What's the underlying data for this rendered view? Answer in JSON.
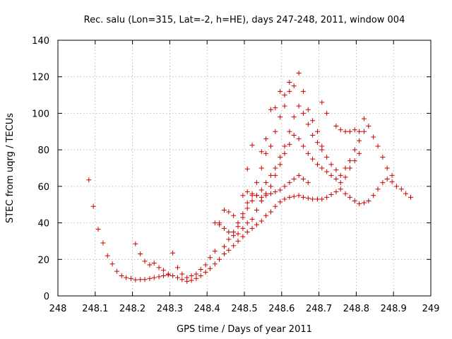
{
  "chart_data": {
    "type": "scatter",
    "title": "Rec. salu (Lon=315, Lat=-2, h=HE), days 247-248, 2011, window 004",
    "xlabel": "GPS time / Days of year 2011",
    "ylabel": "STEC from uqrg / TECUs",
    "xlim": [
      248,
      249
    ],
    "ylim": [
      0,
      140
    ],
    "x_ticks": [
      248,
      248.1,
      248.2,
      248.3,
      248.4,
      248.5,
      248.6,
      248.7,
      248.8,
      248.9,
      249
    ],
    "x_tick_labels": [
      "248",
      "248.1",
      "248.2",
      "248.3",
      "248.4",
      "248.5",
      "248.6",
      "248.7",
      "248.8",
      "248.9",
      "249"
    ],
    "y_ticks": [
      0,
      20,
      40,
      60,
      80,
      100,
      120,
      140
    ],
    "y_tick_labels": [
      "0",
      "20",
      "40",
      "60",
      "80",
      "100",
      "120",
      "140"
    ],
    "grid": true,
    "marker": "+",
    "marker_color": "#cc0000",
    "points": [
      [
        248.083,
        63.5
      ],
      [
        248.095,
        49
      ],
      [
        248.108,
        36.5
      ],
      [
        248.121,
        29
      ],
      [
        248.133,
        22
      ],
      [
        248.146,
        17.5
      ],
      [
        248.158,
        13.5
      ],
      [
        248.171,
        11
      ],
      [
        248.183,
        10
      ],
      [
        248.196,
        9.5
      ],
      [
        248.208,
        8.8
      ],
      [
        248.221,
        9
      ],
      [
        248.233,
        9
      ],
      [
        248.246,
        9.5
      ],
      [
        248.258,
        10
      ],
      [
        248.271,
        10.5
      ],
      [
        248.283,
        11
      ],
      [
        248.296,
        11.5
      ],
      [
        248.308,
        11
      ],
      [
        248.321,
        10
      ],
      [
        248.333,
        9
      ],
      [
        248.346,
        8
      ],
      [
        248.358,
        8.5
      ],
      [
        248.371,
        9.5
      ],
      [
        248.383,
        11
      ],
      [
        248.396,
        13
      ],
      [
        248.408,
        15
      ],
      [
        248.421,
        17.5
      ],
      [
        248.433,
        20
      ],
      [
        248.446,
        23
      ],
      [
        248.458,
        25
      ],
      [
        248.471,
        27.5
      ],
      [
        248.483,
        30
      ],
      [
        248.496,
        32.5
      ],
      [
        248.508,
        35
      ],
      [
        248.521,
        37
      ],
      [
        248.533,
        39
      ],
      [
        248.546,
        41
      ],
      [
        248.558,
        44
      ],
      [
        248.571,
        46
      ],
      [
        248.583,
        49
      ],
      [
        248.596,
        51.5
      ],
      [
        248.608,
        53
      ],
      [
        248.621,
        54
      ],
      [
        248.633,
        54.5
      ],
      [
        248.646,
        55
      ],
      [
        248.658,
        54
      ],
      [
        248.671,
        53.5
      ],
      [
        248.683,
        53
      ],
      [
        248.696,
        53
      ],
      [
        248.708,
        53
      ],
      [
        248.721,
        54
      ],
      [
        248.733,
        55.5
      ],
      [
        248.746,
        57
      ],
      [
        248.758,
        58.5
      ],
      [
        248.771,
        56
      ],
      [
        248.783,
        54
      ],
      [
        248.796,
        52
      ],
      [
        248.808,
        50.5
      ],
      [
        248.821,
        51
      ],
      [
        248.833,
        52
      ],
      [
        248.846,
        55
      ],
      [
        248.858,
        58.5
      ],
      [
        248.871,
        62
      ],
      [
        248.883,
        64
      ],
      [
        248.896,
        62.5
      ],
      [
        248.908,
        60
      ],
      [
        248.921,
        58.5
      ],
      [
        248.933,
        56
      ],
      [
        248.946,
        54
      ],
      [
        248.208,
        28.5
      ],
      [
        248.221,
        23
      ],
      [
        248.233,
        19
      ],
      [
        248.246,
        17
      ],
      [
        248.258,
        18
      ],
      [
        248.271,
        15.5
      ],
      [
        248.283,
        14
      ],
      [
        248.296,
        12
      ],
      [
        248.308,
        23.5
      ],
      [
        248.321,
        15.5
      ],
      [
        248.333,
        12
      ],
      [
        248.346,
        10
      ],
      [
        248.358,
        11
      ],
      [
        248.371,
        12
      ],
      [
        248.383,
        14.5
      ],
      [
        248.396,
        17
      ],
      [
        248.408,
        21
      ],
      [
        248.421,
        24.5
      ],
      [
        248.433,
        40
      ],
      [
        248.446,
        47
      ],
      [
        248.458,
        46
      ],
      [
        248.471,
        44
      ],
      [
        248.483,
        40
      ],
      [
        248.496,
        45
      ],
      [
        248.508,
        51
      ],
      [
        248.521,
        55
      ],
      [
        248.533,
        62
      ],
      [
        248.546,
        70
      ],
      [
        248.558,
        78
      ],
      [
        248.571,
        82
      ],
      [
        248.583,
        90
      ],
      [
        248.596,
        98
      ],
      [
        248.608,
        104
      ],
      [
        248.621,
        112
      ],
      [
        248.633,
        115
      ],
      [
        248.646,
        122
      ],
      [
        248.658,
        112
      ],
      [
        248.671,
        102
      ],
      [
        248.683,
        96
      ],
      [
        248.696,
        90
      ],
      [
        248.708,
        82
      ],
      [
        248.721,
        76
      ],
      [
        248.733,
        72
      ],
      [
        248.746,
        69
      ],
      [
        248.758,
        66
      ],
      [
        248.771,
        70
      ],
      [
        248.783,
        74
      ],
      [
        248.796,
        80
      ],
      [
        248.808,
        85
      ],
      [
        248.821,
        90
      ],
      [
        248.833,
        93
      ],
      [
        248.846,
        87
      ],
      [
        248.858,
        82
      ],
      [
        248.871,
        76
      ],
      [
        248.883,
        70
      ],
      [
        248.896,
        66
      ],
      [
        248.421,
        40
      ],
      [
        248.433,
        39
      ],
      [
        248.446,
        37
      ],
      [
        248.458,
        35
      ],
      [
        248.471,
        33
      ],
      [
        248.483,
        34
      ],
      [
        248.496,
        37
      ],
      [
        248.508,
        40
      ],
      [
        248.521,
        42
      ],
      [
        248.533,
        47
      ],
      [
        248.546,
        52
      ],
      [
        248.558,
        56
      ],
      [
        248.571,
        60
      ],
      [
        248.583,
        66
      ],
      [
        248.596,
        72
      ],
      [
        248.608,
        78
      ],
      [
        248.621,
        83
      ],
      [
        248.633,
        88
      ],
      [
        248.646,
        86
      ],
      [
        248.658,
        82
      ],
      [
        248.671,
        78
      ],
      [
        248.683,
        75
      ],
      [
        248.696,
        72
      ],
      [
        248.708,
        70
      ],
      [
        248.721,
        68
      ],
      [
        248.733,
        66
      ],
      [
        248.746,
        64
      ],
      [
        248.758,
        62
      ],
      [
        248.771,
        65
      ],
      [
        248.783,
        70
      ],
      [
        248.796,
        74
      ],
      [
        248.808,
        78
      ],
      [
        248.446,
        27
      ],
      [
        248.458,
        31
      ],
      [
        248.471,
        35
      ],
      [
        248.483,
        38
      ],
      [
        248.496,
        43
      ],
      [
        248.508,
        48
      ],
      [
        248.521,
        52
      ],
      [
        248.533,
        55
      ],
      [
        248.546,
        58
      ],
      [
        248.558,
        62
      ],
      [
        248.571,
        66
      ],
      [
        248.583,
        70
      ],
      [
        248.596,
        76
      ],
      [
        248.608,
        82
      ],
      [
        248.621,
        90
      ],
      [
        248.633,
        98
      ],
      [
        248.646,
        104
      ],
      [
        248.658,
        100
      ],
      [
        248.671,
        94
      ],
      [
        248.683,
        88
      ],
      [
        248.696,
        84
      ],
      [
        248.708,
        80
      ],
      [
        248.496,
        55
      ],
      [
        248.508,
        57
      ],
      [
        248.521,
        56
      ],
      [
        248.533,
        55
      ],
      [
        248.546,
        54
      ],
      [
        248.558,
        55
      ],
      [
        248.571,
        56
      ],
      [
        248.583,
        57
      ],
      [
        248.596,
        58
      ],
      [
        248.608,
        60
      ],
      [
        248.621,
        62
      ],
      [
        248.633,
        64
      ],
      [
        248.646,
        66
      ],
      [
        248.658,
        64
      ],
      [
        248.671,
        62
      ],
      [
        248.508,
        69.5
      ],
      [
        248.521,
        82.5
      ],
      [
        248.546,
        79
      ],
      [
        248.558,
        86
      ],
      [
        248.571,
        102
      ],
      [
        248.583,
        103
      ],
      [
        248.596,
        112
      ],
      [
        248.608,
        110
      ],
      [
        248.621,
        117
      ],
      [
        248.708,
        106
      ],
      [
        248.721,
        100
      ],
      [
        248.746,
        93
      ],
      [
        248.758,
        91
      ],
      [
        248.771,
        90
      ],
      [
        248.783,
        90
      ],
      [
        248.796,
        91
      ],
      [
        248.808,
        90
      ],
      [
        248.821,
        97
      ]
    ]
  }
}
